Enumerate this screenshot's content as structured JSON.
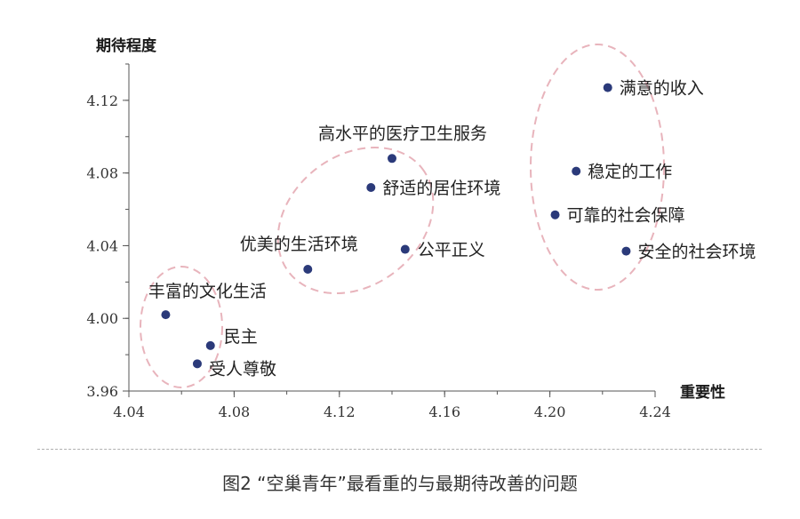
{
  "chart_data": {
    "type": "scatter",
    "xlabel": "重要性",
    "ylabel": "期待程度",
    "xlim": [
      4.04,
      4.24
    ],
    "ylim": [
      3.96,
      4.14
    ],
    "xticks": [
      "4.04",
      "4.08",
      "4.12",
      "4.16",
      "4.20",
      "4.24"
    ],
    "yticks": [
      "3.96",
      "4.00",
      "4.04",
      "4.08",
      "4.12"
    ],
    "points": [
      {
        "label": "满意的收入",
        "x": 4.222,
        "y": 4.127
      },
      {
        "label": "稳定的工作",
        "x": 4.21,
        "y": 4.081
      },
      {
        "label": "可靠的社会保障",
        "x": 4.202,
        "y": 4.057
      },
      {
        "label": "安全的社会环境",
        "x": 4.229,
        "y": 4.037
      },
      {
        "label": "高水平的医疗卫生服务",
        "x": 4.14,
        "y": 4.088
      },
      {
        "label": "舒适的居住环境",
        "x": 4.132,
        "y": 4.072
      },
      {
        "label": "公平正义",
        "x": 4.145,
        "y": 4.038
      },
      {
        "label": "优美的生活环境",
        "x": 4.108,
        "y": 4.027
      },
      {
        "label": "丰富的文化生活",
        "x": 4.054,
        "y": 4.002
      },
      {
        "label": "民主",
        "x": 4.071,
        "y": 3.985
      },
      {
        "label": "受人尊敬",
        "x": 4.066,
        "y": 3.975
      }
    ],
    "point_color": "#2b3a7a",
    "group_outline_color": "#e8b4bc"
  },
  "caption": "图2 “空巢青年”最看重的与最期待改善的问题"
}
